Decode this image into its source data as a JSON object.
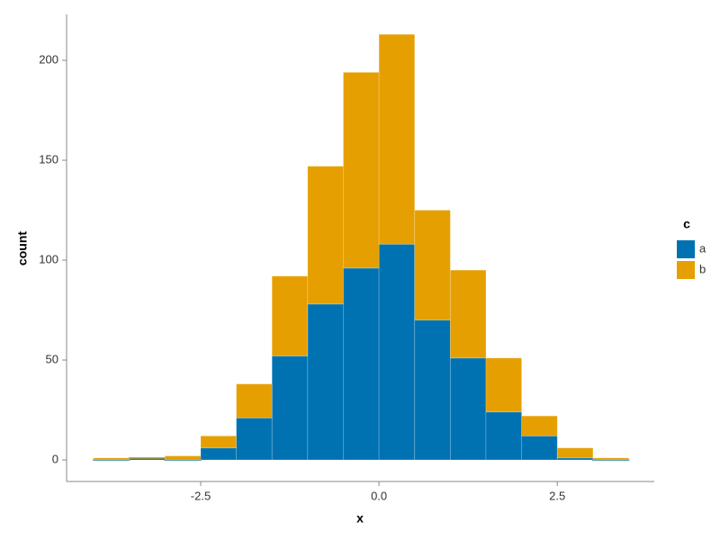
{
  "chart_data": {
    "type": "histogram",
    "stacked": true,
    "x_label": "x",
    "y_label": "count",
    "legend_title": "c",
    "legend": "right",
    "bins": [
      -4.0,
      -3.5,
      -3.0,
      -2.5,
      -2.0,
      -1.5,
      -1.0,
      -0.5,
      0.0,
      0.5,
      1.0,
      1.5,
      2.0,
      2.5,
      3.0,
      3.5
    ],
    "series": [
      {
        "name": "a",
        "color": "#0072b2",
        "values": [
          0,
          1,
          0,
          6,
          21,
          52,
          78,
          96,
          108,
          70,
          51,
          24,
          12,
          1,
          0
        ]
      },
      {
        "name": "b",
        "color": "#e69f00",
        "values": [
          1,
          0,
          2,
          6,
          17,
          40,
          69,
          98,
          105,
          55,
          44,
          27,
          10,
          5,
          1
        ]
      }
    ],
    "xlim": [
      -4.38,
      3.86
    ],
    "xticks": [
      -2.5,
      {
        "value": 0,
        "label": "0.0"
      },
      2.5
    ],
    "ylim": [
      -10.8,
      223
    ],
    "yticks": [
      0,
      50,
      100,
      150,
      200
    ]
  }
}
